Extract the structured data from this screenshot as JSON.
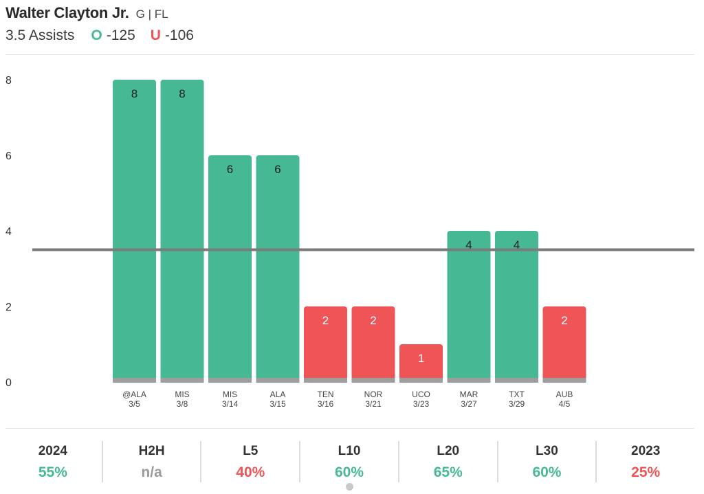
{
  "player": {
    "name": "Walter Clayton Jr.",
    "meta": "G | FL"
  },
  "line": {
    "prop": "3.5 Assists",
    "over_symbol": "O",
    "over_odds": "-125",
    "under_symbol": "U",
    "under_odds": "-106"
  },
  "colors": {
    "over": "#46b994",
    "under": "#ef5457",
    "line": "#7b7b7b",
    "base": "#9e9e9e",
    "na": "#9a9a9a"
  },
  "chart_data": {
    "type": "bar",
    "categories": [
      "@ALA",
      "MIS",
      "MIS",
      "ALA",
      "TEN",
      "NOR",
      "UCO",
      "MAR",
      "TXT",
      "AUB"
    ],
    "dates": [
      "3/5",
      "3/8",
      "3/14",
      "3/15",
      "3/16",
      "3/21",
      "3/23",
      "3/27",
      "3/29",
      "4/5"
    ],
    "values": [
      8,
      8,
      6,
      6,
      2,
      2,
      1,
      4,
      4,
      2
    ],
    "threshold": 3.5,
    "yticks": [
      0,
      2,
      4,
      6,
      8
    ],
    "ylim": [
      0,
      8
    ],
    "title": "",
    "xlabel": "",
    "ylabel": ""
  },
  "stats": [
    {
      "label": "2024",
      "value": "55%",
      "status": "over"
    },
    {
      "label": "H2H",
      "value": "n/a",
      "status": "na"
    },
    {
      "label": "L5",
      "value": "40%",
      "status": "under"
    },
    {
      "label": "L10",
      "value": "60%",
      "status": "over"
    },
    {
      "label": "L20",
      "value": "65%",
      "status": "over"
    },
    {
      "label": "L30",
      "value": "60%",
      "status": "over"
    },
    {
      "label": "2023",
      "value": "25%",
      "status": "under"
    }
  ]
}
